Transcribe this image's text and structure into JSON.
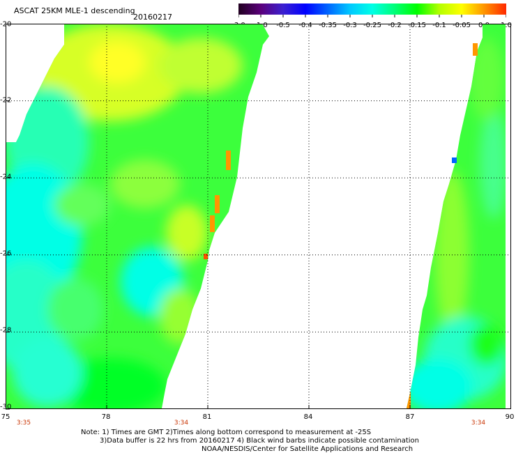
{
  "header": {
    "title": "ASCAT 25KM MLE-1 descending",
    "date": "20160217"
  },
  "colorbar": {
    "labels": [
      "-3.0",
      "-1.0",
      "-0.5",
      "-0.4",
      "-0.35",
      "-0.3",
      "-0.25",
      "-0.2",
      "-0.15",
      "-0.1",
      "-0.05",
      "0.0",
      "1.0"
    ],
    "colors": [
      "#200020",
      "#5a007a",
      "#3c20d0",
      "#0000ff",
      "#0064ff",
      "#00c8ff",
      "#00ffe6",
      "#00ff78",
      "#00ff00",
      "#b4ff00",
      "#ffff00",
      "#ff9600",
      "#ff2800"
    ]
  },
  "axes": {
    "lat_labels": [
      "-20",
      "-22",
      "-24",
      "-26",
      "-28",
      "-30"
    ],
    "lon_labels": [
      "75",
      "78",
      "81",
      "84",
      "87",
      "90"
    ],
    "time_labels": [
      "3:35",
      "3:34",
      "3:34"
    ]
  },
  "notes": {
    "line1": "Note: 1) Times are GMT 2)Times along bottom correspond to measurement at -25S",
    "line2": "3)Data buffer is 22 hrs from 20160217 4) Black wind barbs indicate possible contamination",
    "line3": "NOAA/NESDIS/Center for Satellite Applications and Research"
  },
  "colors": {
    "grid": "#000000",
    "time_label": "#c83200"
  }
}
